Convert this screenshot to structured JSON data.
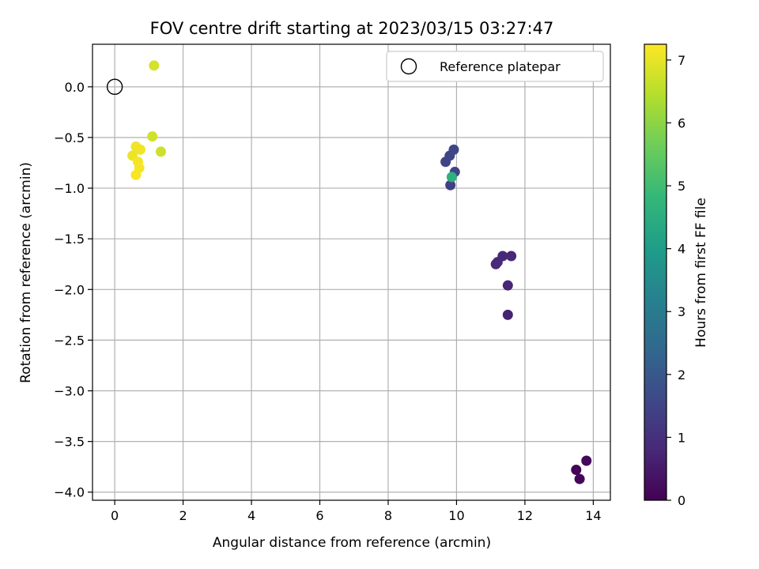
{
  "chart_data": {
    "type": "scatter",
    "title": "FOV centre drift starting at 2023/03/15 03:27:47",
    "xlabel": "Angular distance from reference (arcmin)",
    "ylabel": "Rotation from reference (arcmin)",
    "xlim": [
      -0.65,
      14.5
    ],
    "ylim": [
      -4.08,
      0.42
    ],
    "x_ticks": [
      0,
      2,
      4,
      6,
      8,
      10,
      12,
      14
    ],
    "y_ticks": [
      0.0,
      -0.5,
      -1.0,
      -1.5,
      -2.0,
      -2.5,
      -3.0,
      -3.5,
      -4.0
    ],
    "grid": true,
    "legend": {
      "position": "top-right",
      "entries": [
        "Reference platepar"
      ]
    },
    "reference_point": {
      "x": 0,
      "y": 0
    },
    "colorbar": {
      "label": "Hours from first FF file",
      "range": [
        0,
        7.25
      ],
      "ticks": [
        0,
        1,
        2,
        3,
        4,
        5,
        6,
        7
      ],
      "colormap": "viridis"
    },
    "points": [
      {
        "x": 13.5,
        "y": -3.78,
        "t": 0.05
      },
      {
        "x": 13.6,
        "y": -3.87,
        "t": 0.1
      },
      {
        "x": 13.8,
        "y": -3.69,
        "t": 0.15
      },
      {
        "x": 11.5,
        "y": -2.25,
        "t": 0.7
      },
      {
        "x": 11.5,
        "y": -1.96,
        "t": 0.75
      },
      {
        "x": 11.6,
        "y": -1.67,
        "t": 0.8
      },
      {
        "x": 11.35,
        "y": -1.67,
        "t": 0.8
      },
      {
        "x": 11.2,
        "y": -1.73,
        "t": 0.85
      },
      {
        "x": 11.15,
        "y": -1.75,
        "t": 0.85
      },
      {
        "x": 9.82,
        "y": -0.97,
        "t": 1.4
      },
      {
        "x": 9.95,
        "y": -0.84,
        "t": 1.5
      },
      {
        "x": 9.68,
        "y": -0.74,
        "t": 1.5
      },
      {
        "x": 9.8,
        "y": -0.68,
        "t": 1.5
      },
      {
        "x": 9.92,
        "y": -0.62,
        "t": 1.55
      },
      {
        "x": 9.86,
        "y": -0.89,
        "t": 4.6
      },
      {
        "x": 1.35,
        "y": -0.64,
        "t": 6.7
      },
      {
        "x": 1.1,
        "y": -0.49,
        "t": 6.75
      },
      {
        "x": 1.15,
        "y": 0.21,
        "t": 6.8
      },
      {
        "x": 0.52,
        "y": -0.68,
        "t": 7.05
      },
      {
        "x": 0.62,
        "y": -0.59,
        "t": 7.1
      },
      {
        "x": 0.75,
        "y": -0.62,
        "t": 7.1
      },
      {
        "x": 0.68,
        "y": -0.74,
        "t": 7.15
      },
      {
        "x": 0.72,
        "y": -0.8,
        "t": 7.15
      },
      {
        "x": 0.62,
        "y": -0.87,
        "t": 7.2
      }
    ]
  }
}
